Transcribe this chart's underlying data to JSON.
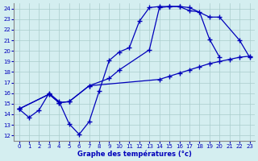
{
  "title": "Graphe des températures (°c)",
  "bg_color": "#d4eef0",
  "grid_color": "#aacccc",
  "line_color": "#0000bb",
  "marker": "+",
  "markersize": 4,
  "linewidth": 0.9,
  "xlim": [
    -0.5,
    23.5
  ],
  "ylim": [
    11.5,
    24.5
  ],
  "yticks": [
    12,
    13,
    14,
    15,
    16,
    17,
    18,
    19,
    20,
    21,
    22,
    23,
    24
  ],
  "xticks": [
    0,
    1,
    2,
    3,
    4,
    5,
    6,
    7,
    8,
    9,
    10,
    11,
    12,
    13,
    14,
    15,
    16,
    17,
    18,
    19,
    20,
    21,
    22,
    23
  ],
  "series": [
    {
      "x": [
        0,
        1,
        2,
        3,
        4,
        5,
        6,
        7,
        8,
        9,
        10,
        11,
        12,
        13,
        14,
        15,
        16,
        17,
        18,
        19,
        20
      ],
      "y": [
        14.5,
        13.7,
        14.4,
        16.0,
        15.2,
        13.1,
        12.1,
        13.3,
        16.2,
        19.1,
        19.9,
        20.3,
        22.8,
        24.1,
        24.2,
        24.2,
        24.2,
        23.8,
        23.7,
        21.1,
        19.4
      ]
    },
    {
      "x": [
        0,
        3,
        4,
        5,
        7,
        9,
        10,
        13,
        14,
        15,
        16,
        17,
        19,
        20,
        22,
        23
      ],
      "y": [
        14.5,
        15.9,
        15.1,
        15.2,
        16.7,
        17.4,
        18.2,
        20.1,
        24.1,
        24.2,
        24.2,
        24.1,
        23.2,
        23.2,
        21.0,
        19.4
      ]
    },
    {
      "x": [
        0,
        3,
        4,
        5,
        7,
        14,
        15,
        16,
        17,
        18,
        19,
        20,
        21,
        22,
        23
      ],
      "y": [
        14.5,
        15.9,
        15.1,
        15.2,
        16.7,
        17.3,
        17.6,
        17.9,
        18.2,
        18.5,
        18.8,
        19.0,
        19.2,
        19.4,
        19.5
      ]
    }
  ]
}
